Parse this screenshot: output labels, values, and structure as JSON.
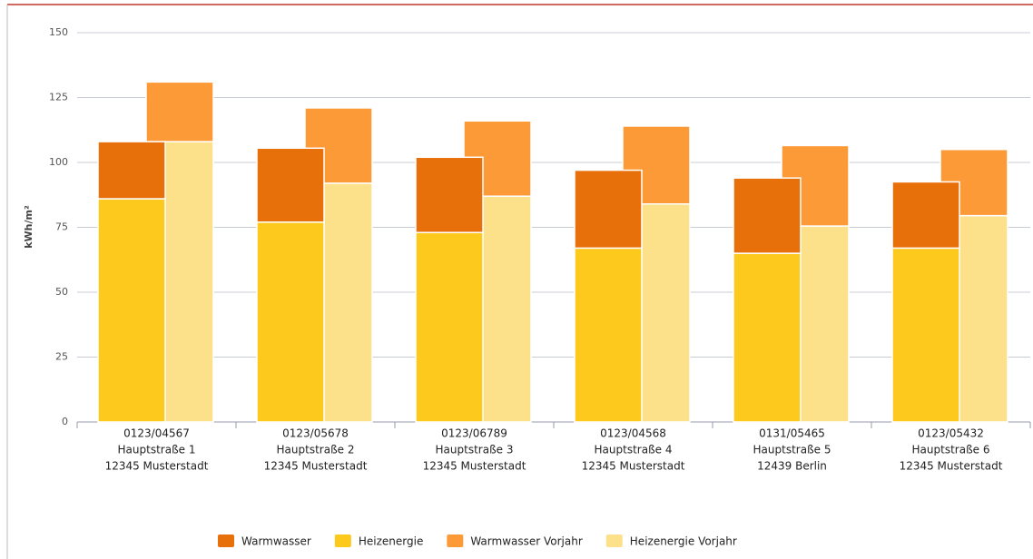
{
  "chart_data": {
    "type": "stacked_grouped_bar",
    "y_label": "kWh/m²",
    "categories": [
      [
        "0123/04567",
        "Hauptstraße 1",
        "12345 Musterstadt"
      ],
      [
        "0123/05678",
        "Hauptstraße 2",
        "12345 Musterstadt"
      ],
      [
        "0123/06789",
        "Hauptstraße 3",
        "12345 Musterstadt"
      ],
      [
        "0123/04568",
        "Hauptstraße 4",
        "12345 Musterstadt"
      ],
      [
        "0131/05465",
        "Hauptstraße 5",
        "12439 Berlin"
      ],
      [
        "0123/05432",
        "Hauptstraße 6",
        "12345 Musterstadt"
      ]
    ],
    "series": [
      {
        "name": "Warmwasser",
        "color": "#e8700a",
        "stack": 0,
        "values": [
          22,
          28.5,
          29,
          30,
          29,
          25.5
        ]
      },
      {
        "name": "Heizenergie",
        "color": "#fcc91c",
        "stack": 0,
        "values": [
          86,
          77,
          73,
          67,
          65,
          67
        ]
      },
      {
        "name": "Warmwasser Vorjahr",
        "color": "#fd9a38",
        "stack": 1,
        "values": [
          23,
          29,
          29,
          30,
          31,
          25.5
        ]
      },
      {
        "name": "Heizenergie Vorjahr",
        "color": "#fde08a",
        "stack": 1,
        "values": [
          108,
          92,
          87,
          84,
          75.5,
          79.5
        ]
      }
    ],
    "ylim": [
      0,
      150
    ],
    "yticks": [
      0,
      25,
      50,
      75,
      100,
      125,
      150
    ],
    "grid": true
  }
}
